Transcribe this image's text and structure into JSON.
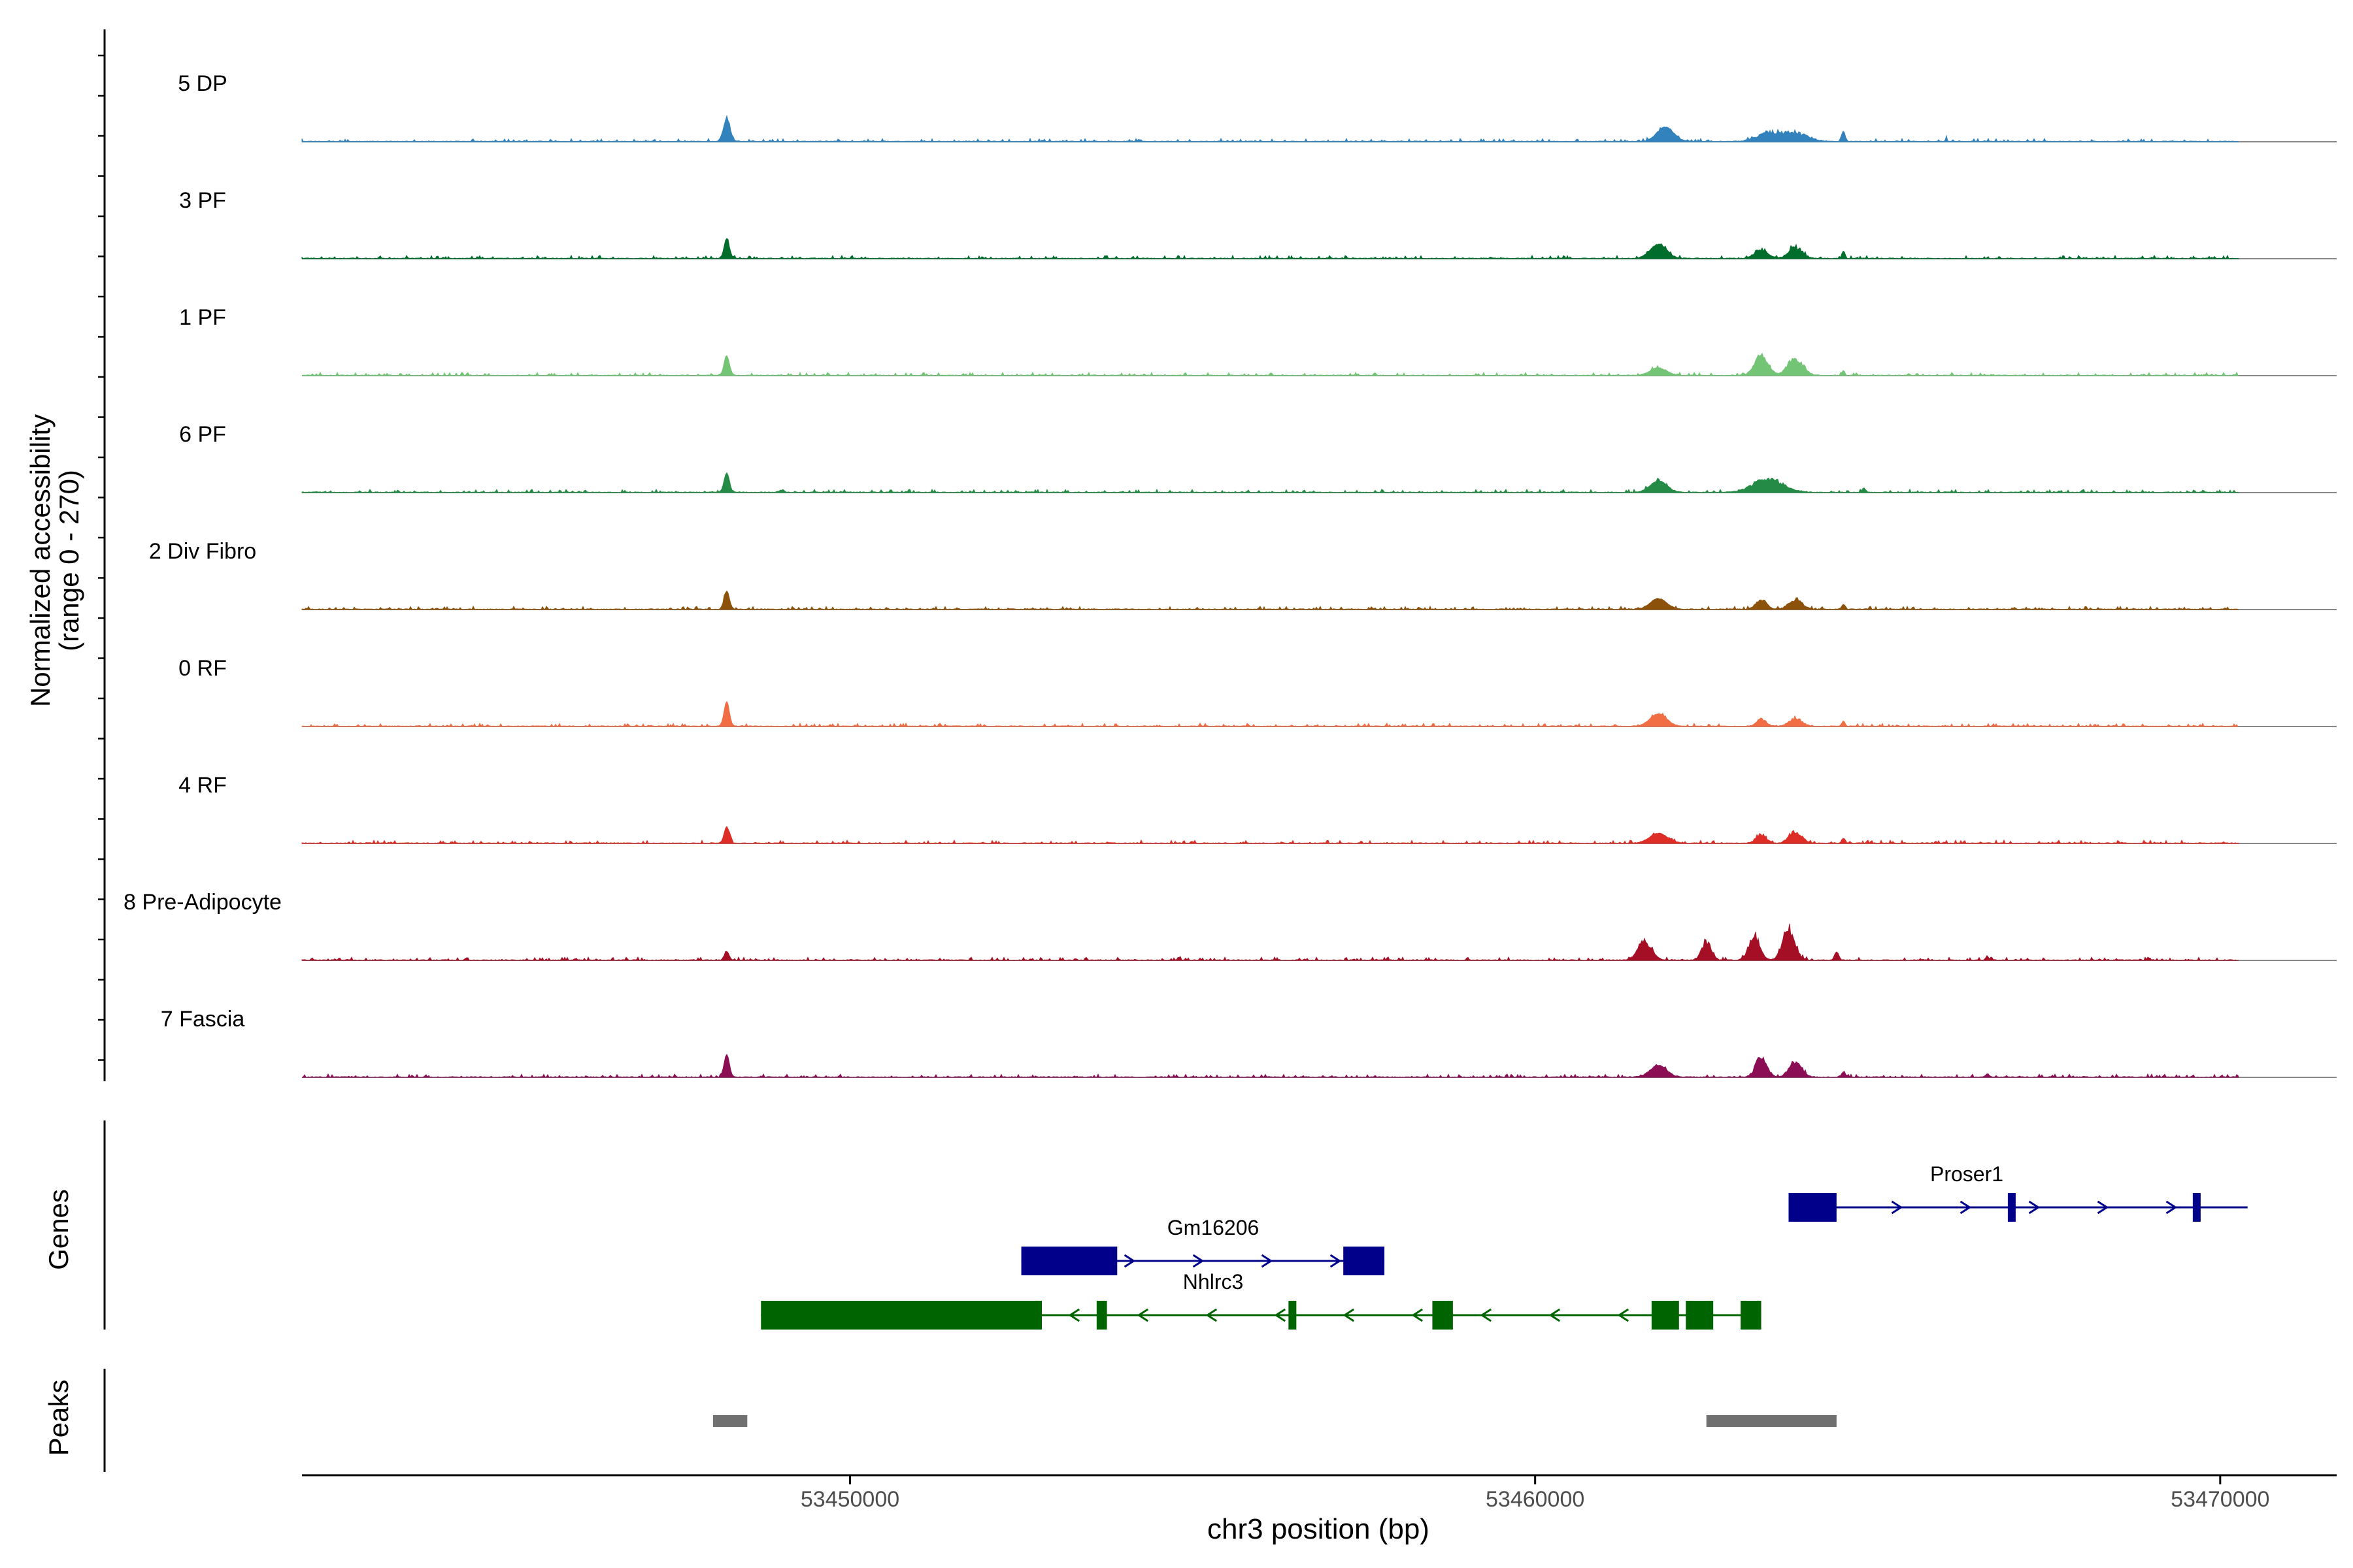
{
  "chart_data": {
    "type": "area",
    "title": "",
    "xlabel": "chr3 position (bp)",
    "ylabel_line1": "Normalized accessibility",
    "ylabel_line2": "(range 0 - 270)",
    "ylim": [
      0,
      270
    ],
    "xlim": [
      53442000,
      53471700
    ],
    "x_ticks": [
      53450000,
      53460000,
      53470000
    ],
    "x_tick_labels": [
      "53450000",
      "53460000",
      "53470000"
    ],
    "series": [
      {
        "name": "5 DP",
        "color": "#3182BD",
        "peaks": [
          [
            53448200,
            48,
            55,
            1.0
          ],
          [
            53461900,
            120,
            35,
            1.0
          ],
          [
            53463400,
            165,
            24,
            0.8
          ],
          [
            53463800,
            185,
            24,
            0.8
          ],
          [
            53464500,
            25,
            25,
            1.0
          ],
          [
            53466000,
            9,
            15,
            1.0
          ]
        ]
      },
      {
        "name": "3 PF",
        "color": "#006D2C",
        "peaks": [
          [
            53448200,
            38,
            48,
            1.0
          ],
          [
            53461800,
            120,
            34,
            1.0
          ],
          [
            53463300,
            92,
            28,
            0.8
          ],
          [
            53463800,
            102,
            30,
            0.8
          ],
          [
            53464500,
            22,
            18,
            1.0
          ]
        ]
      },
      {
        "name": "1 PF",
        "color": "#74C476",
        "peaks": [
          [
            53448200,
            38,
            48,
            1.0
          ],
          [
            53461800,
            120,
            18,
            1.0
          ],
          [
            53463300,
            100,
            55,
            0.6
          ],
          [
            53463800,
            110,
            50,
            0.7
          ],
          [
            53464500,
            20,
            12,
            1.0
          ]
        ]
      },
      {
        "name": "6 PF",
        "color": "#238B45",
        "peaks": [
          [
            53448200,
            38,
            48,
            1.0
          ],
          [
            53449000,
            40,
            5,
            1.0
          ],
          [
            53461800,
            120,
            28,
            1.0
          ],
          [
            53463400,
            210,
            40,
            0.9
          ],
          [
            53464800,
            25,
            10,
            1.0
          ]
        ]
      },
      {
        "name": "2 Div Fibro",
        "color": "#8C510A",
        "peaks": [
          [
            53448200,
            38,
            45,
            1.0
          ],
          [
            53461800,
            120,
            26,
            1.0
          ],
          [
            53463300,
            78,
            30,
            0.8
          ],
          [
            53463800,
            100,
            28,
            0.8
          ],
          [
            53464500,
            25,
            12,
            1.0
          ],
          [
            53467000,
            15,
            5,
            1.0
          ]
        ]
      },
      {
        "name": "0 RF",
        "color": "#F16D44",
        "peaks": [
          [
            53448200,
            38,
            60,
            1.0
          ],
          [
            53461800,
            120,
            30,
            1.0
          ],
          [
            53463300,
            70,
            20,
            0.8
          ],
          [
            53463800,
            90,
            24,
            0.8
          ],
          [
            53464500,
            25,
            12,
            1.0
          ]
        ]
      },
      {
        "name": "4 RF",
        "color": "#DE2D26",
        "peaks": [
          [
            53448200,
            38,
            40,
            1.0
          ],
          [
            53461800,
            130,
            24,
            1.0
          ],
          [
            53463300,
            70,
            26,
            0.8
          ],
          [
            53463800,
            90,
            34,
            0.8
          ],
          [
            53464500,
            25,
            12,
            1.0
          ],
          [
            53455000,
            12,
            5,
            1.0
          ]
        ]
      },
      {
        "name": "8 Pre-Adipocyte",
        "color": "#A50F26",
        "peaks": [
          [
            53448200,
            35,
            20,
            1.0
          ],
          [
            53461600,
            100,
            55,
            0.9
          ],
          [
            53462500,
            70,
            50,
            0.9
          ],
          [
            53463200,
            80,
            70,
            0.8
          ],
          [
            53463700,
            90,
            90,
            0.8
          ],
          [
            53464400,
            30,
            20,
            1.0
          ],
          [
            53466600,
            20,
            10,
            1.0
          ],
          [
            53444400,
            12,
            6,
            1.0
          ],
          [
            53446000,
            15,
            4,
            1.0
          ],
          [
            53454800,
            18,
            6,
            1.0
          ],
          [
            53459000,
            10,
            4,
            1.0
          ]
        ]
      },
      {
        "name": "7 Fascia",
        "color": "#8B0E55",
        "peaks": [
          [
            53448200,
            38,
            55,
            1.0
          ],
          [
            53461800,
            120,
            28,
            1.0
          ],
          [
            53463300,
            80,
            58,
            0.8
          ],
          [
            53463800,
            90,
            44,
            0.8
          ],
          [
            53464500,
            25,
            12,
            1.0
          ],
          [
            53466600,
            25,
            8,
            1.0
          ]
        ]
      }
    ],
    "genes": [
      {
        "name": "Gm16206",
        "color": "#00008B",
        "strand": "+",
        "start": 53452500,
        "end": 53457800,
        "exons": [
          [
            53452500,
            53453900
          ],
          [
            53457200,
            53457800
          ]
        ],
        "label_x": 53455300,
        "row": 2
      },
      {
        "name": "Nhlrc3",
        "color": "#006400",
        "strand": "-",
        "start": 53448700,
        "end": 53463300,
        "exons": [
          [
            53448700,
            53452800
          ],
          [
            53453600,
            53453750
          ],
          [
            53456400,
            53456500
          ],
          [
            53458500,
            53458800
          ],
          [
            53461700,
            53462100
          ],
          [
            53462200,
            53462600
          ],
          [
            53463000,
            53463300
          ]
        ],
        "label_x": 53455300,
        "row": 3
      },
      {
        "name": "Proser1",
        "color": "#00008B",
        "strand": "+",
        "start": 53463700,
        "end": 53470400,
        "exons": [
          [
            53463700,
            53464400
          ],
          [
            53466900,
            53466950
          ],
          [
            53469600,
            53469700
          ]
        ],
        "label_x": 53466300,
        "row": 1
      }
    ],
    "peaks_track": [
      [
        53448000,
        53448500
      ],
      [
        53462500,
        53464400
      ]
    ],
    "panel_labels": {
      "genes": "Genes",
      "peaks": "Peaks"
    }
  }
}
